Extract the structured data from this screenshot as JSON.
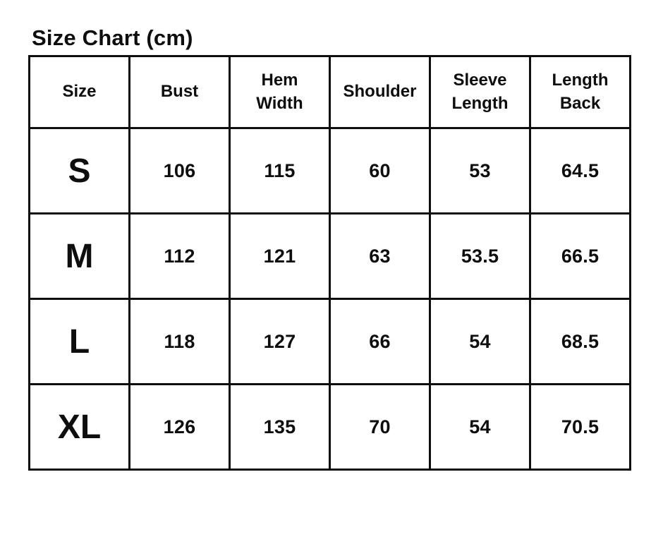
{
  "title": "Size Chart (cm)",
  "table": {
    "headers": [
      "Size",
      "Bust",
      "Hem\nWidth",
      "Shoulder",
      "Sleeve\nLength",
      "Length\nBack"
    ],
    "rows": [
      {
        "size": "S",
        "values": [
          "106",
          "115",
          "60",
          "53",
          "64.5"
        ]
      },
      {
        "size": "M",
        "values": [
          "112",
          "121",
          "63",
          "53.5",
          "66.5"
        ]
      },
      {
        "size": "L",
        "values": [
          "118",
          "127",
          "66",
          "54",
          "68.5"
        ]
      },
      {
        "size": "XL",
        "values": [
          "126",
          "135",
          "70",
          "54",
          "70.5"
        ]
      }
    ]
  },
  "chart_data": {
    "type": "table",
    "title": "Size Chart (cm)",
    "units": "cm",
    "columns": [
      "Size",
      "Bust",
      "Hem Width",
      "Shoulder",
      "Sleeve Length",
      "Length Back"
    ],
    "rows": [
      [
        "S",
        106,
        115,
        60,
        53,
        64.5
      ],
      [
        "M",
        112,
        121,
        63,
        53.5,
        66.5
      ],
      [
        "L",
        118,
        127,
        66,
        54,
        68.5
      ],
      [
        "XL",
        126,
        135,
        70,
        54,
        70.5
      ]
    ]
  },
  "colors": {
    "text": "#0e0e0e",
    "border": "#0e0e0e",
    "background": "#ffffff"
  }
}
